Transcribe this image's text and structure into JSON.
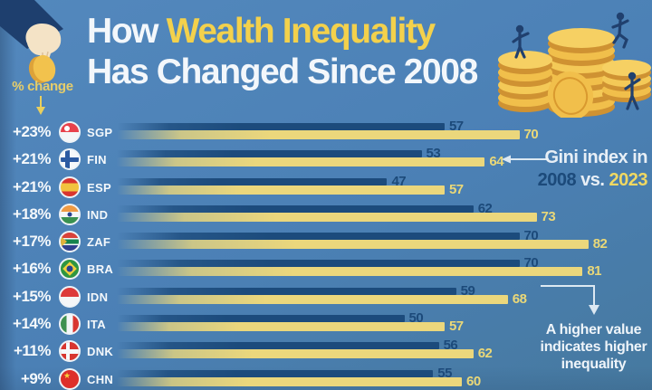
{
  "header": {
    "title_prefix": "How ",
    "title_highlight": "Wealth Inequality",
    "title_line2": "Has Changed Since 2008",
    "pct_change_label": "% change"
  },
  "annotations": {
    "gini": {
      "line1": "Gini index in",
      "year_old": "2008",
      "vs": " vs. ",
      "year_new": "2023"
    },
    "higher_value": {
      "lines": [
        "A higher value",
        "indicates higher",
        "inequality"
      ]
    }
  },
  "icons": {
    "hand_coin": "hand-dropping-coin",
    "coin_stacks": "coin-stacks-with-people",
    "pct_arrow": "down-arrow",
    "gini_arrow": "left-arrow",
    "elbow_arrow": "elbow-down-arrow"
  },
  "chart_data": {
    "type": "bar",
    "orientation": "horizontal",
    "title": "How Wealth Inequality Has Changed Since 2008",
    "value_label": "Gini index",
    "categories": [
      "SGP",
      "FIN",
      "ESP",
      "IND",
      "ZAF",
      "BRA",
      "IDN",
      "ITA",
      "DNK",
      "CHN"
    ],
    "pct_change": [
      "+23%",
      "+21%",
      "+21%",
      "+18%",
      "+17%",
      "+16%",
      "+15%",
      "+14%",
      "+11%",
      "+9%"
    ],
    "series": [
      {
        "name": "2008",
        "color": "#1c4b7c",
        "values": [
          57,
          53,
          47,
          62,
          70,
          70,
          59,
          50,
          56,
          55
        ]
      },
      {
        "name": "2023",
        "color": "#ebd77c",
        "values": [
          70,
          64,
          57,
          73,
          82,
          81,
          68,
          57,
          62,
          60
        ]
      }
    ],
    "xlim": [
      0,
      90
    ],
    "legend_position": "right-annotation",
    "grid": false,
    "colors": {
      "background": "#4b80b5",
      "accent_yellow": "#f3d14c",
      "text_light": "#f3f7fb",
      "value_2008_text": "#1c4a7a",
      "value_2023_text": "#ead878"
    }
  }
}
